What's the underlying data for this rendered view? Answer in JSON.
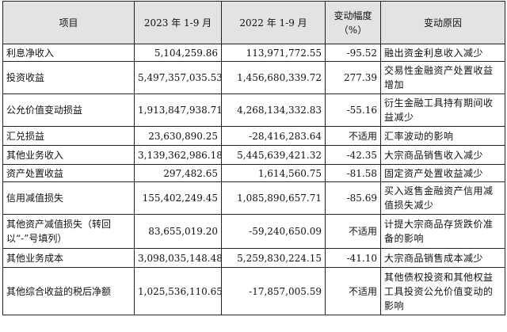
{
  "table": {
    "headers": {
      "item": "项目",
      "y2023": "2023 年 1-9 月",
      "y2022": "2022 年 1-9 月",
      "change_line1": "变动幅度",
      "change_line2": "（%）",
      "reason": "变动原因"
    },
    "rows": [
      {
        "item": "利息净收入",
        "y2023": "5,104,259.86",
        "y2022": "113,971,772.55",
        "change": "-95.52",
        "reason": "融出资金利息收入减少"
      },
      {
        "item": "投资收益",
        "y2023": "5,497,357,035.53",
        "y2022": "1,456,680,339.72",
        "change": "277.39",
        "reason": "交易性金融资产处置收益增加"
      },
      {
        "item": "公允价值变动损益",
        "y2023": "1,913,847,938.71",
        "y2022": "4,268,134,332.83",
        "change": "-55.16",
        "reason": "衍生金融工具持有期间收益减少"
      },
      {
        "item": "汇兑损益",
        "y2023": "23,630,890.25",
        "y2022": "-28,416,283.64",
        "change": "不适用",
        "reason": "汇率波动的影响"
      },
      {
        "item": "其他业务收入",
        "y2023": "3,139,362,986.18",
        "y2022": "5,445,639,421.32",
        "change": "-42.35",
        "reason": "大宗商品销售收入减少"
      },
      {
        "item": "资产处置收益",
        "y2023": "297,482.65",
        "y2022": "1,614,560.75",
        "change": "-81.58",
        "reason": "固定资产处置收益减少"
      },
      {
        "item": "信用减值损失",
        "y2023": "155,402,249.45",
        "y2022": "1,085,890,657.71",
        "change": "-85.69",
        "reason": "买入返售金融资产信用减值损失减少"
      },
      {
        "item": "其他资产减值损失（转回以“-”号填列）",
        "y2023": "83,655,019.20",
        "y2022": "-59,240,650.09",
        "change": "不适用",
        "reason": "计提大宗商品存货跌价准备的影响"
      },
      {
        "item": "其他业务成本",
        "y2023": "3,098,035,148.48",
        "y2022": "5,259,830,224.15",
        "change": "-41.10",
        "reason": "大宗商品销售成本减少"
      },
      {
        "item": "其他综合收益的税后净额",
        "y2023": "1,025,536,110.65",
        "y2022": "-17,857,005.59",
        "change": "不适用",
        "reason": "其他债权投资和其他权益工具投资公允价值变动的影响"
      }
    ]
  }
}
